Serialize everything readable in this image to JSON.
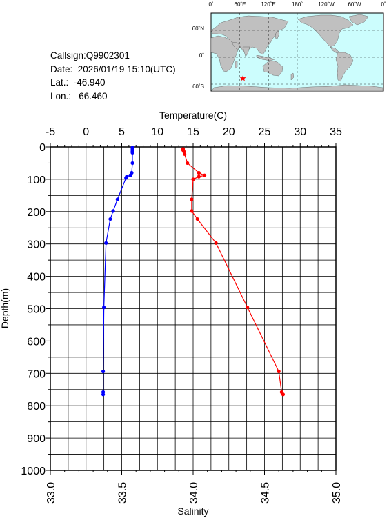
{
  "info": {
    "callsign": "Callsign:Q9902301",
    "date": "Date:  2026/01/19 15:10(UTC)",
    "lat": "Lat.:  -46.940",
    "lon": "Lon.:   66.460"
  },
  "map": {
    "lon_labels": [
      "0˚",
      "60˚E",
      "120˚E",
      "180˚",
      "120˚W",
      "60˚W",
      "0˚"
    ],
    "lat_labels": [
      "60˚N",
      "0˚",
      "60˚S"
    ],
    "float_lon": 66.46,
    "float_lat": -46.94,
    "colors": {
      "ocean": "#ccfdfd",
      "land": "#c0c0c0",
      "marker": "#ff0000"
    }
  },
  "chart_data": {
    "type": "line",
    "xlabel_top": "Temperature(C)",
    "xlabel_bottom": "Salinity",
    "ylabel": "Depth(m)",
    "temp_range": [
      -5,
      35
    ],
    "temp_ticks": [
      "-5",
      "0",
      "5",
      "10",
      "15",
      "20",
      "25",
      "30",
      "35"
    ],
    "sal_range": [
      33.0,
      35.0
    ],
    "sal_ticks": [
      "33.0",
      "33.5",
      "34.0",
      "34.5",
      "35.0"
    ],
    "depth_range": [
      0,
      1000
    ],
    "depth_ticks": [
      "0",
      "100",
      "200",
      "300",
      "400",
      "500",
      "600",
      "700",
      "800",
      "900",
      "1000"
    ],
    "grid": true,
    "series": [
      {
        "key": "temperature",
        "color": "#0000ff",
        "axis": "top",
        "points": [
          [
            6.5,
            2
          ],
          [
            6.5,
            6
          ],
          [
            6.5,
            10
          ],
          [
            6.5,
            14
          ],
          [
            6.5,
            18
          ],
          [
            6.5,
            50
          ],
          [
            6.4,
            80
          ],
          [
            6.2,
            88
          ],
          [
            5.7,
            92
          ],
          [
            5.6,
            96
          ],
          [
            4.4,
            162
          ],
          [
            3.8,
            198
          ],
          [
            3.4,
            223
          ],
          [
            2.8,
            297
          ],
          [
            2.5,
            496
          ],
          [
            2.4,
            694
          ],
          [
            2.4,
            758
          ],
          [
            2.4,
            765
          ]
        ]
      },
      {
        "key": "salinity",
        "color": "#ff0000",
        "axis": "bottom",
        "points": [
          [
            33.93,
            6
          ],
          [
            33.93,
            10
          ],
          [
            33.935,
            14
          ],
          [
            33.94,
            22
          ],
          [
            33.96,
            50
          ],
          [
            34.04,
            80
          ],
          [
            34.08,
            88
          ],
          [
            34.04,
            92
          ],
          [
            34.0,
            100
          ],
          [
            33.99,
            162
          ],
          [
            33.99,
            198
          ],
          [
            34.03,
            223
          ],
          [
            34.16,
            297
          ],
          [
            34.38,
            496
          ],
          [
            34.6,
            694
          ],
          [
            34.62,
            758
          ],
          [
            34.63,
            765
          ]
        ]
      }
    ]
  }
}
